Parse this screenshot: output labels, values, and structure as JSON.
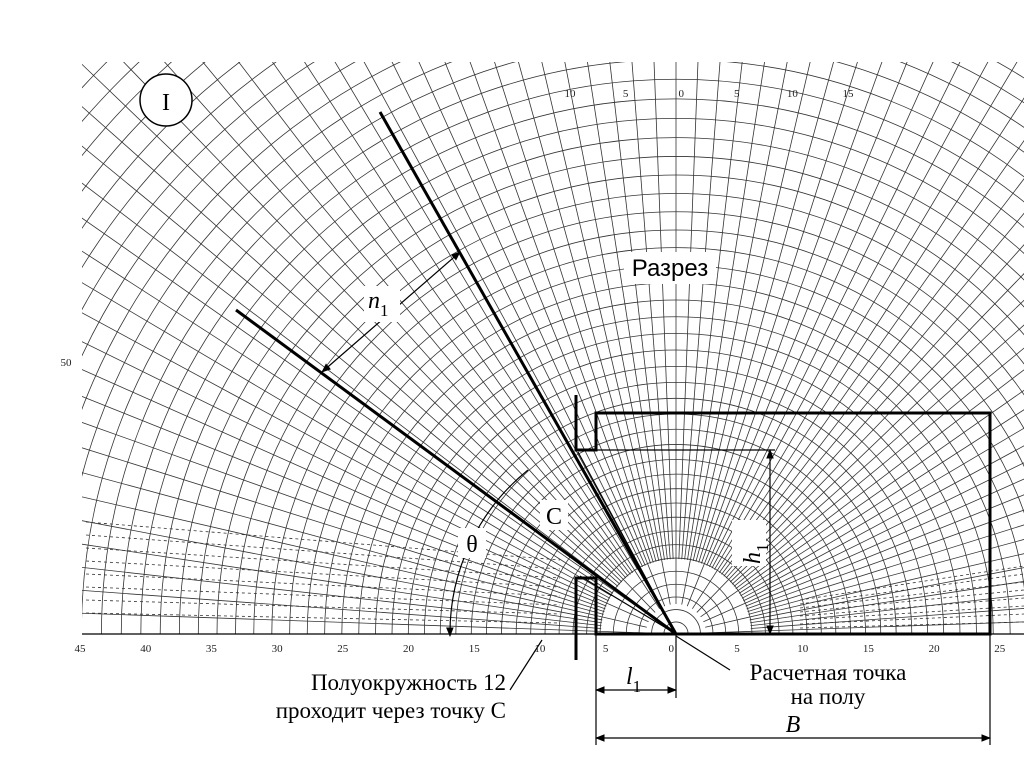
{
  "figure": {
    "label": "I",
    "section_label": "Разрез",
    "n_label": {
      "main": "n",
      "sub": "1"
    },
    "theta": "θ",
    "point_c": "C",
    "h_label": {
      "main": "h",
      "sub": "1"
    },
    "l_label": {
      "main": "l",
      "sub": "1"
    },
    "b_label": "B",
    "bottom_scale": [
      "45",
      "40",
      "35",
      "30",
      "25",
      "20",
      "15",
      "10",
      "5",
      "0",
      "5",
      "10",
      "15",
      "20",
      "25"
    ],
    "top_scale": [
      "10",
      "5",
      "0",
      "5",
      "10",
      "15"
    ],
    "left_scale": [
      "50"
    ]
  },
  "captions": {
    "semicircle": [
      "Полуокружность 12",
      "проходит через точку C"
    ],
    "point": [
      "Расчетная точка",
      "на полу"
    ]
  }
}
